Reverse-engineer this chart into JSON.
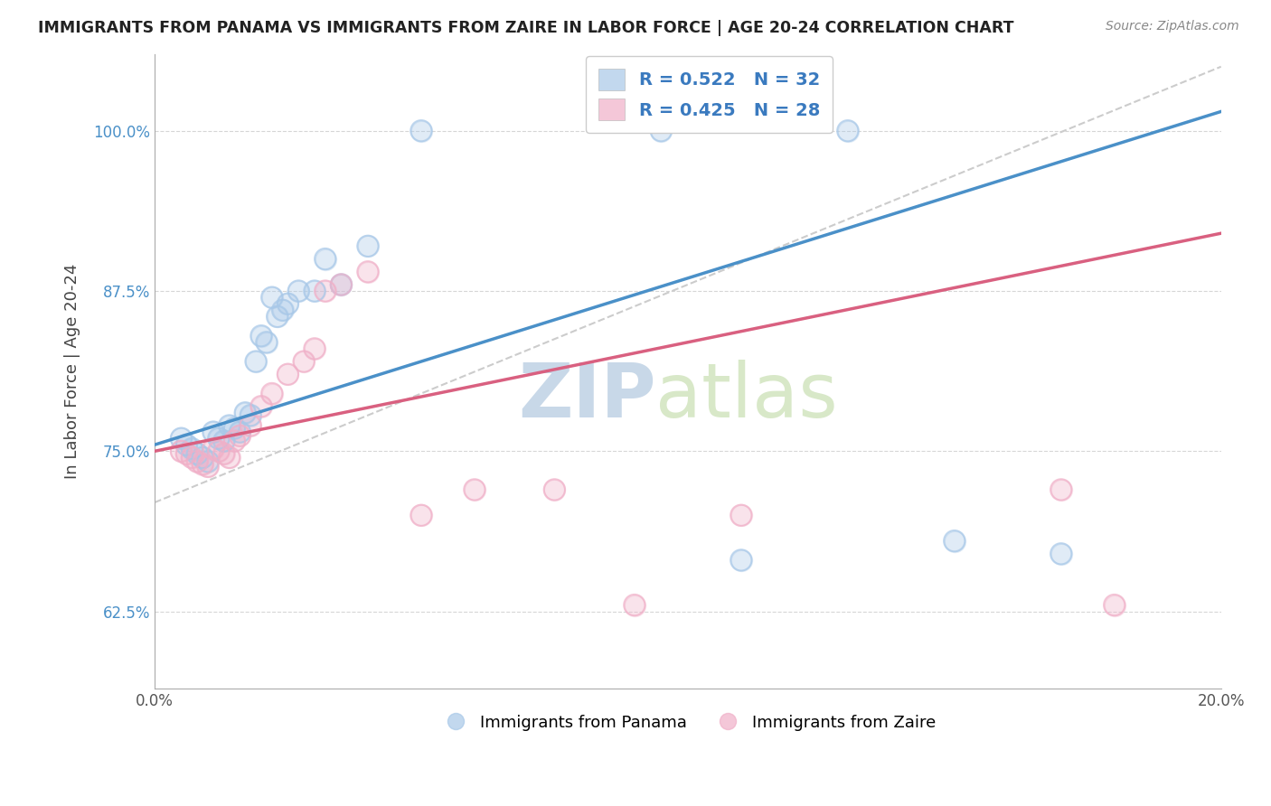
{
  "title": "IMMIGRANTS FROM PANAMA VS IMMIGRANTS FROM ZAIRE IN LABOR FORCE | AGE 20-24 CORRELATION CHART",
  "source": "Source: ZipAtlas.com",
  "ylabel": "In Labor Force | Age 20-24",
  "r_panama": 0.522,
  "n_panama": 32,
  "r_zaire": 0.425,
  "n_zaire": 28,
  "xlim": [
    0.0,
    0.2
  ],
  "ylim": [
    0.565,
    1.06
  ],
  "yticks": [
    0.625,
    0.75,
    0.875,
    1.0
  ],
  "ytick_labels": [
    "62.5%",
    "75.0%",
    "87.5%",
    "100.0%"
  ],
  "xticks": [
    0.0,
    0.05,
    0.1,
    0.15,
    0.2
  ],
  "xtick_labels": [
    "0.0%",
    "",
    "",
    "",
    "20.0%"
  ],
  "color_panama": "#a8c8e8",
  "color_zaire": "#f0b0c8",
  "panama_scatter_x": [
    0.005,
    0.006,
    0.007,
    0.008,
    0.009,
    0.01,
    0.011,
    0.012,
    0.013,
    0.014,
    0.015,
    0.016,
    0.017,
    0.018,
    0.019,
    0.02,
    0.021,
    0.022,
    0.023,
    0.024,
    0.025,
    0.027,
    0.03,
    0.032,
    0.035,
    0.04,
    0.05,
    0.095,
    0.13,
    0.15,
    0.17,
    0.11
  ],
  "panama_scatter_y": [
    0.76,
    0.755,
    0.752,
    0.748,
    0.745,
    0.742,
    0.765,
    0.76,
    0.758,
    0.77,
    0.768,
    0.765,
    0.78,
    0.778,
    0.82,
    0.84,
    0.835,
    0.87,
    0.855,
    0.86,
    0.865,
    0.875,
    0.875,
    0.9,
    0.88,
    0.91,
    1.0,
    1.0,
    1.0,
    0.68,
    0.67,
    0.665
  ],
  "zaire_scatter_x": [
    0.005,
    0.006,
    0.007,
    0.008,
    0.009,
    0.01,
    0.011,
    0.012,
    0.013,
    0.014,
    0.015,
    0.016,
    0.018,
    0.02,
    0.022,
    0.025,
    0.028,
    0.03,
    0.032,
    0.035,
    0.04,
    0.05,
    0.06,
    0.075,
    0.09,
    0.11,
    0.17,
    0.18
  ],
  "zaire_scatter_y": [
    0.75,
    0.748,
    0.745,
    0.742,
    0.74,
    0.738,
    0.752,
    0.75,
    0.748,
    0.745,
    0.758,
    0.762,
    0.77,
    0.785,
    0.795,
    0.81,
    0.82,
    0.83,
    0.875,
    0.88,
    0.89,
    0.7,
    0.72,
    0.72,
    0.63,
    0.7,
    0.72,
    0.63
  ],
  "watermark_zip": "ZIP",
  "watermark_atlas": "atlas",
  "legend_panama": "Immigrants from Panama",
  "legend_zaire": "Immigrants from Zaire",
  "trendline_panama_slope": 1.3,
  "trendline_panama_intercept": 0.755,
  "trendline_zaire_slope": 0.85,
  "trendline_zaire_intercept": 0.75,
  "refline_slope": 1.7,
  "refline_intercept": 0.71
}
